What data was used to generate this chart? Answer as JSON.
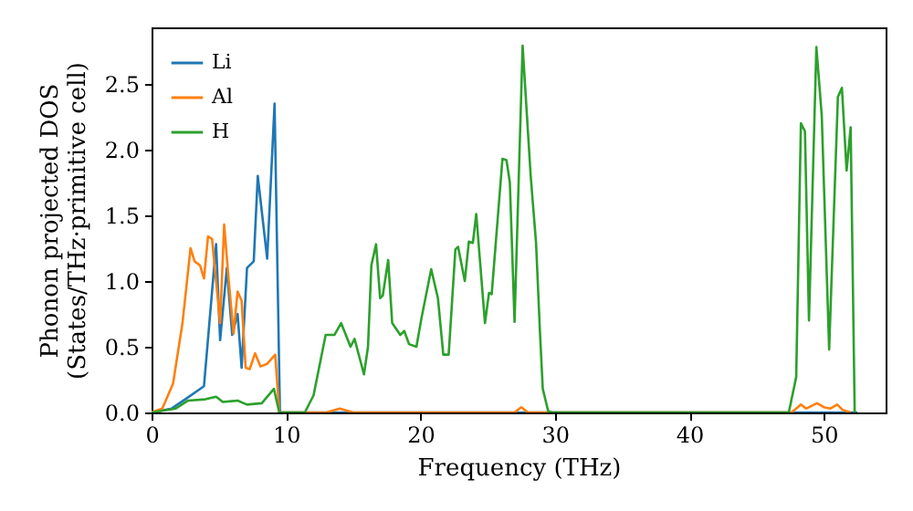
{
  "chart_data": {
    "type": "line",
    "xlabel": "Frequency (THz)",
    "ylabel": "Phonon projected DOS\n(States/THz·primitive cell)",
    "xlim": [
      0,
      54.6
    ],
    "ylim": [
      0,
      2.93
    ],
    "xticks": [
      0,
      10,
      20,
      30,
      40,
      50
    ],
    "yticks": [
      {
        "value": 0,
        "label": "0.0"
      },
      0.5,
      {
        "value": 1,
        "label": "1.0"
      },
      1.5,
      {
        "value": 2,
        "label": "2.0"
      },
      2.5
    ],
    "legend": "top left",
    "grid": false,
    "line_style": "solid",
    "marker": "none",
    "series": [
      {
        "name": "Li",
        "color": "#1f77b4",
        "x": [
          0,
          1.5,
          2.5,
          3.9,
          4.8,
          5.1,
          5.6,
          6.0,
          6.4,
          6.7,
          7.1,
          7.6,
          7.9,
          8.6,
          9.15,
          9.55,
          12,
          20,
          30,
          40,
          47.5,
          52.5
        ],
        "values": [
          0,
          0.03,
          0.1,
          0.2,
          1.28,
          0.55,
          1.1,
          0.59,
          0.75,
          0.34,
          1.1,
          1.15,
          1.8,
          1.17,
          2.35,
          0,
          0,
          0,
          0,
          0,
          0,
          0
        ]
      },
      {
        "name": "Al",
        "color": "#ff7f0e",
        "x": [
          0,
          0.8,
          1.6,
          2.3,
          2.9,
          3.2,
          3.6,
          3.9,
          4.2,
          4.5,
          5.1,
          5.4,
          5.7,
          6.1,
          6.4,
          6.7,
          7.0,
          7.3,
          7.7,
          8.1,
          8.6,
          9.2,
          9.5,
          13,
          14,
          15,
          27,
          27.5,
          28,
          47.6,
          47.95,
          48.3,
          48.7,
          49.5,
          50.0,
          50.5,
          51.0,
          51.4,
          52.0
        ],
        "values": [
          0,
          0.03,
          0.22,
          0.68,
          1.25,
          1.15,
          1.12,
          1.02,
          1.34,
          1.32,
          0.68,
          1.43,
          1.05,
          0.6,
          0.92,
          0.85,
          0.34,
          0.33,
          0.45,
          0.35,
          0.37,
          0.44,
          0,
          0,
          0.03,
          0,
          0,
          0.04,
          0,
          0,
          0.03,
          0.06,
          0.03,
          0.07,
          0.04,
          0.03,
          0.06,
          0.02,
          0
        ]
      },
      {
        "name": "H",
        "color": "#2ca02c",
        "x": [
          0,
          1.8,
          2.7,
          4.0,
          4.8,
          5.3,
          6.4,
          7.1,
          8.2,
          9.1,
          9.5,
          11.4,
          12.05,
          12.95,
          13.6,
          14.1,
          14.8,
          15.1,
          15.8,
          16.1,
          16.35,
          16.7,
          17.0,
          17.2,
          17.6,
          17.9,
          18.5,
          18.8,
          19.15,
          19.7,
          20.1,
          20.8,
          21.3,
          21.7,
          22.1,
          22.6,
          22.8,
          23.3,
          23.6,
          23.9,
          24.15,
          24.8,
          25.1,
          25.3,
          26.1,
          26.4,
          26.65,
          27.0,
          27.6,
          28.2,
          28.6,
          28.9,
          29.1,
          29.5,
          29.8,
          47.4,
          47.95,
          48.3,
          48.6,
          48.9,
          49.45,
          49.85,
          50.4,
          51.05,
          51.35,
          51.7,
          52.0,
          52.3
        ],
        "values": [
          0,
          0.03,
          0.09,
          0.1,
          0.12,
          0.08,
          0.09,
          0.06,
          0.07,
          0.18,
          0,
          0,
          0.13,
          0.59,
          0.59,
          0.68,
          0.5,
          0.56,
          0.29,
          0.5,
          1.12,
          1.28,
          0.87,
          0.89,
          1.16,
          0.68,
          0.59,
          0.62,
          0.52,
          0.5,
          0.73,
          1.09,
          0.87,
          0.44,
          0.44,
          1.24,
          1.26,
          1.0,
          1.3,
          1.29,
          1.51,
          0.68,
          0.91,
          0.9,
          1.93,
          1.92,
          1.75,
          0.69,
          2.79,
          1.8,
          1.29,
          0.59,
          0.18,
          0.01,
          0,
          0,
          0.27,
          2.2,
          2.14,
          0.7,
          2.78,
          2.26,
          0.48,
          2.4,
          2.47,
          1.84,
          2.17,
          0
        ]
      }
    ]
  }
}
